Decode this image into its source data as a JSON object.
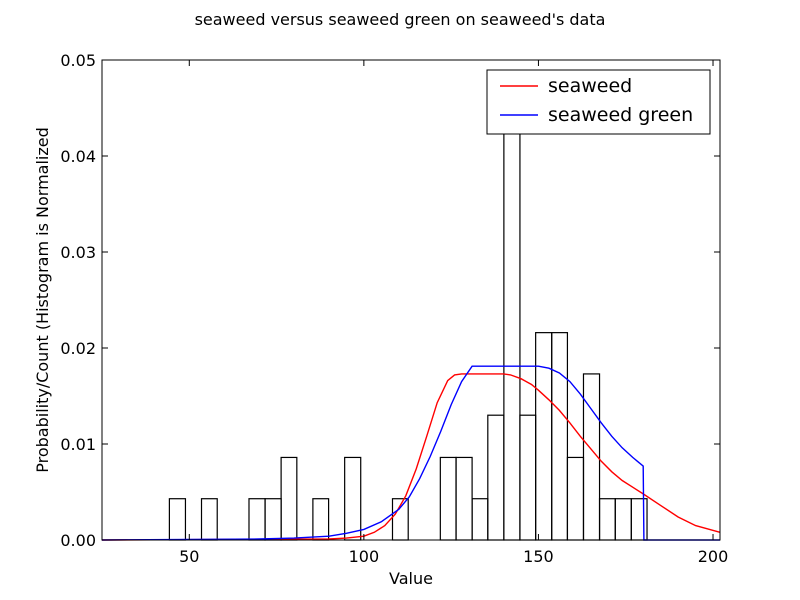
{
  "chart_data": {
    "type": "bar",
    "title": "seaweed versus seaweed green on seaweed's data",
    "xlabel": "Value",
    "ylabel": "Probability/Count (Histogram is Normalized",
    "xlim": [
      25,
      202
    ],
    "ylim": [
      0,
      0.05
    ],
    "xticks": [
      50,
      100,
      150,
      200
    ],
    "yticks": [
      0.0,
      0.01,
      0.02,
      0.03,
      0.04,
      0.05
    ],
    "xtick_labels": [
      "50",
      "100",
      "150",
      "200"
    ],
    "ytick_labels": [
      "0.00",
      "0.01",
      "0.02",
      "0.03",
      "0.04",
      "0.05"
    ],
    "grid": false,
    "legend_position": "top-right",
    "histogram": {
      "bin_edges": [
        44.3,
        48.9,
        53.5,
        58.0,
        62.6,
        67.1,
        71.7,
        76.3,
        80.8,
        85.4,
        89.9,
        94.5,
        99.1,
        103.6,
        108.2,
        112.7,
        117.3,
        121.9,
        126.4,
        131.0,
        135.5,
        140.1,
        144.7,
        149.2,
        153.8,
        158.3,
        162.9,
        167.5,
        172.0,
        176.6,
        181.1
      ],
      "values": [
        0.0043,
        0.0,
        0.0043,
        0.0,
        0.0,
        0.0043,
        0.0043,
        0.0086,
        0.0,
        0.0043,
        0.0,
        0.0086,
        0.0,
        0.0,
        0.0043,
        0.0,
        0.0,
        0.0086,
        0.0086,
        0.0043,
        0.013,
        0.0433,
        0.013,
        0.0216,
        0.0216,
        0.0086,
        0.0173,
        0.0043,
        0.0043,
        0.0043
      ],
      "color": "#000000"
    },
    "series": [
      {
        "name": "seaweed",
        "color": "#ff0000",
        "x": [
          25,
          90,
          95,
          100,
          103,
          106,
          109,
          112,
          115,
          118,
          121,
          124,
          126,
          128,
          130,
          135,
          140,
          142,
          145,
          148,
          150,
          153,
          156,
          159,
          162,
          165,
          168,
          171,
          174,
          177,
          180,
          185,
          190,
          195,
          202
        ],
        "y": [
          0.0,
          0.0001,
          0.0002,
          0.0004,
          0.0008,
          0.0015,
          0.0027,
          0.0046,
          0.0074,
          0.0108,
          0.0143,
          0.0166,
          0.0172,
          0.0173,
          0.0173,
          0.0173,
          0.0173,
          0.0172,
          0.0168,
          0.0162,
          0.0156,
          0.0146,
          0.0135,
          0.0122,
          0.0108,
          0.0095,
          0.0082,
          0.0071,
          0.0062,
          0.0055,
          0.0048,
          0.0036,
          0.0024,
          0.0015,
          0.0008
        ]
      },
      {
        "name": "seaweed green",
        "color": "#0000ff",
        "x": [
          25,
          70,
          80,
          90,
          95,
          100,
          105,
          110,
          113,
          116,
          119,
          122,
          125,
          128,
          131,
          135,
          140,
          145,
          150,
          153,
          156,
          159,
          162,
          165,
          168,
          171,
          174,
          177,
          180,
          180.2,
          202
        ],
        "y": [
          0.0,
          0.0001,
          0.0002,
          0.0004,
          0.0007,
          0.0011,
          0.0019,
          0.0032,
          0.0045,
          0.0064,
          0.0087,
          0.0113,
          0.0141,
          0.0165,
          0.0181,
          0.0181,
          0.0181,
          0.0181,
          0.0181,
          0.0179,
          0.0174,
          0.0165,
          0.0152,
          0.0137,
          0.0122,
          0.0108,
          0.0096,
          0.0086,
          0.0077,
          0.0,
          0.0
        ]
      }
    ]
  }
}
